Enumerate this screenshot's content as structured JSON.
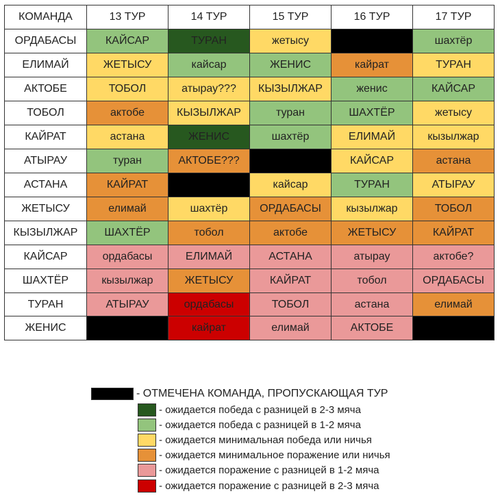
{
  "colors": {
    "bye": "#000000",
    "big_win": "#27581f",
    "win": "#93c47d",
    "min_win": "#ffd965",
    "min_loss": "#e69138",
    "loss": "#ea9999",
    "big_loss": "#cc0000"
  },
  "header": [
    "КОМАНДА",
    "13 ТУР",
    "14 ТУР",
    "15 ТУР",
    "16 ТУР",
    "17 ТУР"
  ],
  "rows": [
    {
      "team": "ОРДАБАСЫ",
      "cells": [
        {
          "text": "КАЙСАР",
          "c": "win"
        },
        {
          "text": "ТУРАН",
          "c": "big_win"
        },
        {
          "text": "жетысу",
          "c": "min_win"
        },
        {
          "text": "",
          "c": "bye"
        },
        {
          "text": "шахтёр",
          "c": "win"
        }
      ]
    },
    {
      "team": "ЕЛИМАЙ",
      "cells": [
        {
          "text": "ЖЕТЫСУ",
          "c": "min_win"
        },
        {
          "text": "кайсар",
          "c": "win"
        },
        {
          "text": "ЖЕНИС",
          "c": "win"
        },
        {
          "text": "кайрат",
          "c": "min_loss"
        },
        {
          "text": "ТУРАН",
          "c": "min_win"
        }
      ]
    },
    {
      "team": "АКТОБЕ",
      "cells": [
        {
          "text": "ТОБОЛ",
          "c": "min_win"
        },
        {
          "text": "атырау???",
          "c": "min_win"
        },
        {
          "text": "КЫЗЫЛЖАР",
          "c": "min_win"
        },
        {
          "text": "женис",
          "c": "win"
        },
        {
          "text": "КАЙСАР",
          "c": "win"
        }
      ]
    },
    {
      "team": "ТОБОЛ",
      "cells": [
        {
          "text": "актобе",
          "c": "min_loss"
        },
        {
          "text": "КЫЗЫЛЖАР",
          "c": "min_win"
        },
        {
          "text": "туран",
          "c": "win"
        },
        {
          "text": "ШАХТЁР",
          "c": "win"
        },
        {
          "text": "жетысу",
          "c": "min_win"
        }
      ]
    },
    {
      "team": "КАЙРАТ",
      "cells": [
        {
          "text": "астана",
          "c": "min_win"
        },
        {
          "text": "ЖЕНИС",
          "c": "big_win"
        },
        {
          "text": "шахтёр",
          "c": "win"
        },
        {
          "text": "ЕЛИМАЙ",
          "c": "min_win"
        },
        {
          "text": "кызылжар",
          "c": "min_win"
        }
      ]
    },
    {
      "team": "АТЫРАУ",
      "cells": [
        {
          "text": "туран",
          "c": "win"
        },
        {
          "text": "АКТОБЕ???",
          "c": "min_loss"
        },
        {
          "text": "",
          "c": "bye"
        },
        {
          "text": "КАЙСАР",
          "c": "min_win"
        },
        {
          "text": "астана",
          "c": "min_loss"
        }
      ]
    },
    {
      "team": "АСТАНА",
      "cells": [
        {
          "text": "КАЙРАТ",
          "c": "min_loss"
        },
        {
          "text": "",
          "c": "bye"
        },
        {
          "text": "кайсар",
          "c": "min_win"
        },
        {
          "text": "ТУРАН",
          "c": "win"
        },
        {
          "text": "АТЫРАУ",
          "c": "min_win"
        }
      ]
    },
    {
      "team": "ЖЕТЫСУ",
      "cells": [
        {
          "text": "елимай",
          "c": "min_loss"
        },
        {
          "text": "шахтёр",
          "c": "min_win"
        },
        {
          "text": "ОРДАБАСЫ",
          "c": "min_loss"
        },
        {
          "text": "кызылжар",
          "c": "min_win"
        },
        {
          "text": "ТОБОЛ",
          "c": "min_loss"
        }
      ]
    },
    {
      "team": "КЫЗЫЛЖАР",
      "cells": [
        {
          "text": "ШАХТЁР",
          "c": "win"
        },
        {
          "text": "тобол",
          "c": "min_loss"
        },
        {
          "text": "актобе",
          "c": "min_loss"
        },
        {
          "text": "ЖЕТЫСУ",
          "c": "min_loss"
        },
        {
          "text": "КАЙРАТ",
          "c": "min_loss"
        }
      ]
    },
    {
      "team": "КАЙСАР",
      "cells": [
        {
          "text": "ордабасы",
          "c": "loss"
        },
        {
          "text": "ЕЛИМАЙ",
          "c": "loss"
        },
        {
          "text": "АСТАНА",
          "c": "loss"
        },
        {
          "text": "атырау",
          "c": "loss"
        },
        {
          "text": "актобе?",
          "c": "loss"
        }
      ]
    },
    {
      "team": "ШАХТЁР",
      "cells": [
        {
          "text": "кызылжар",
          "c": "loss"
        },
        {
          "text": "ЖЕТЫСУ",
          "c": "min_loss"
        },
        {
          "text": "КАЙРАТ",
          "c": "loss"
        },
        {
          "text": "тобол",
          "c": "loss"
        },
        {
          "text": "ОРДАБАСЫ",
          "c": "loss"
        }
      ]
    },
    {
      "team": "ТУРАН",
      "cells": [
        {
          "text": "АТЫРАУ",
          "c": "loss"
        },
        {
          "text": "ордабасы",
          "c": "big_loss"
        },
        {
          "text": "ТОБОЛ",
          "c": "loss"
        },
        {
          "text": "астана",
          "c": "loss"
        },
        {
          "text": "елимай",
          "c": "min_loss"
        }
      ]
    },
    {
      "team": "ЖЕНИС",
      "cells": [
        {
          "text": "",
          "c": "bye"
        },
        {
          "text": "кайрат",
          "c": "big_loss"
        },
        {
          "text": "елимай",
          "c": "loss"
        },
        {
          "text": "АКТОБЕ",
          "c": "loss"
        },
        {
          "text": "",
          "c": "bye"
        }
      ]
    }
  ],
  "legend": [
    {
      "c": "bye",
      "text": "- ОТМЕЧЕНА КОМАНДА, ПРОПУСКАЮЩАЯ ТУР"
    },
    {
      "c": "big_win",
      "text": "- ожидается победа с разницей в 2-3 мяча"
    },
    {
      "c": "win",
      "text": "- ожидается победа с разницей в 1-2 мяча"
    },
    {
      "c": "min_win",
      "text": "- ожидается минимальная победа или ничья"
    },
    {
      "c": "min_loss",
      "text": "- ожидается минимальное поражение или ничья"
    },
    {
      "c": "loss",
      "text": "- ожидается поражение с разницей в 1-2 мяча"
    },
    {
      "c": "big_loss",
      "text": "- ожидается поражение с разницей в 2-3 мяча"
    }
  ]
}
